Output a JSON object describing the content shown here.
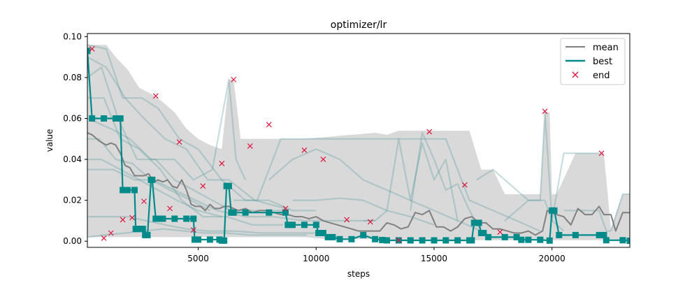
{
  "chart_data": {
    "type": "line",
    "title": "optimizer/lr",
    "xlabel": "steps",
    "ylabel": "value",
    "xlim": [
      300,
      23300
    ],
    "ylim": [
      -0.003,
      0.1015
    ],
    "x_ticks": [
      5000,
      10000,
      15000,
      20000
    ],
    "x_tick_labels": [
      "5000",
      "10000",
      "15000",
      "20000"
    ],
    "y_ticks": [
      0.0,
      0.02,
      0.04,
      0.06,
      0.08,
      0.1
    ],
    "y_tick_labels": [
      "0.00",
      "0.02",
      "0.04",
      "0.06",
      "0.08",
      "0.10"
    ],
    "grid": false,
    "legend": {
      "position": "top-right",
      "entries": [
        {
          "label": "mean",
          "kind": "line",
          "color": "#808080"
        },
        {
          "label": "best",
          "kind": "line",
          "color": "#008b8b"
        },
        {
          "label": "end",
          "kind": "x-marker",
          "color": "#dc143c"
        }
      ]
    },
    "colors": {
      "mean": "#808080",
      "best": "#008b8b",
      "end": "#dc143c",
      "band": "#d9d9d9",
      "trials": "#5f9ea0"
    },
    "band": {
      "name": "range",
      "x": [
        300,
        800,
        1100,
        1500,
        2000,
        2500,
        3000,
        3500,
        4000,
        4500,
        5000,
        5500,
        6000,
        6300,
        6500,
        6800,
        7200,
        8000,
        8700,
        9500,
        10500,
        11500,
        12500,
        13000,
        13500,
        14000,
        14500,
        15000,
        15500,
        16000,
        16500,
        17000,
        17500,
        18000,
        18500,
        19000,
        19500,
        19700,
        19900,
        20000,
        20200,
        21000,
        22000,
        22200,
        22500,
        23000,
        23300
      ],
      "upper": [
        0.096,
        0.096,
        0.096,
        0.09,
        0.084,
        0.075,
        0.072,
        0.068,
        0.063,
        0.055,
        0.05,
        0.047,
        0.045,
        0.079,
        0.079,
        0.05,
        0.05,
        0.05,
        0.05,
        0.05,
        0.051,
        0.052,
        0.053,
        0.052,
        0.054,
        0.054,
        0.054,
        0.054,
        0.054,
        0.054,
        0.054,
        0.035,
        0.035,
        0.023,
        0.023,
        0.023,
        0.023,
        0.063,
        0.063,
        0.023,
        0.023,
        0.043,
        0.043,
        0.043,
        0.006,
        0.023,
        0.023
      ],
      "lower": [
        0.002,
        0.002,
        0.002,
        0.002,
        0.002,
        0.002,
        0.002,
        0.002,
        0.002,
        0.002,
        0.002,
        0.002,
        0.002,
        0.002,
        0.002,
        0.002,
        0.002,
        0.002,
        0.002,
        0.002,
        0.001,
        0.001,
        0.001,
        0.001,
        0.0005,
        0.0005,
        0.0005,
        0.0005,
        0.0005,
        0.0005,
        0.0005,
        0.0005,
        0.0005,
        0.0005,
        0.0005,
        0.0005,
        0.0005,
        0.0005,
        0.0005,
        0.0005,
        0.0005,
        0.0005,
        0.0005,
        0.0005,
        0.0005,
        0.0005,
        0.0005
      ]
    },
    "trials": [
      {
        "x": [
          300,
          1100,
          1800,
          2600,
          3300,
          4200,
          5000,
          6000,
          7000,
          8000,
          9000,
          10000
        ],
        "y": [
          0.096,
          0.094,
          0.07,
          0.07,
          0.065,
          0.05,
          0.045,
          0.03,
          0.02,
          0.02,
          0.015,
          0.015
        ]
      },
      {
        "x": [
          300,
          900,
          1600,
          2400,
          3200,
          4000,
          4800,
          5600,
          6400,
          7400,
          8800
        ],
        "y": [
          0.08,
          0.085,
          0.06,
          0.04,
          0.04,
          0.03,
          0.025,
          0.02,
          0.015,
          0.015,
          0.015
        ]
      },
      {
        "x": [
          300,
          1000,
          1700,
          2500,
          3400,
          4300,
          5200,
          6200,
          7300,
          8600
        ],
        "y": [
          0.07,
          0.07,
          0.05,
          0.045,
          0.035,
          0.02,
          0.012,
          0.012,
          0.008,
          0.008
        ]
      },
      {
        "x": [
          300,
          1200,
          2000,
          2800,
          3600,
          4500,
          5400,
          6500,
          7700,
          9200,
          10400
        ],
        "y": [
          0.012,
          0.012,
          0.012,
          0.01,
          0.008,
          0.006,
          0.005,
          0.005,
          0.004,
          0.004,
          0.004
        ]
      },
      {
        "x": [
          300,
          800,
          1500,
          2200,
          3000,
          3800,
          4700,
          5500
        ],
        "y": [
          0.05,
          0.05,
          0.04,
          0.038,
          0.03,
          0.025,
          0.02,
          0.015
        ]
      },
      {
        "x": [
          300,
          1300,
          2100,
          3000,
          4000,
          4800,
          5600,
          6300,
          6600,
          7000
        ],
        "y": [
          0.06,
          0.055,
          0.05,
          0.04,
          0.04,
          0.03,
          0.035,
          0.079,
          0.04,
          0.03
        ]
      },
      {
        "x": [
          300,
          1000,
          1900,
          2700,
          3500,
          4400,
          5300,
          6200,
          7200,
          8400,
          9600
        ],
        "y": [
          0.002,
          0.003,
          0.004,
          0.005,
          0.006,
          0.005,
          0.004,
          0.004,
          0.003,
          0.003,
          0.003
        ]
      },
      {
        "x": [
          300,
          1400,
          2300,
          3100,
          4000,
          4900,
          5800,
          7000,
          8200,
          9500,
          11000,
          12500
        ],
        "y": [
          0.035,
          0.035,
          0.03,
          0.03,
          0.025,
          0.02,
          0.015,
          0.012,
          0.012,
          0.01,
          0.01,
          0.01
        ]
      },
      {
        "x": [
          300,
          1100,
          1900,
          2700,
          3600,
          4500,
          5400,
          6300,
          7400,
          8700
        ],
        "y": [
          0.09,
          0.085,
          0.07,
          0.06,
          0.05,
          0.045,
          0.03,
          0.03,
          0.02,
          0.016
        ]
      },
      {
        "x": [
          300,
          900,
          1700,
          2500,
          3300,
          4100,
          5000,
          6000
        ],
        "y": [
          0.04,
          0.04,
          0.035,
          0.03,
          0.025,
          0.02,
          0.015,
          0.012
        ]
      },
      {
        "x": [
          6500,
          7500,
          8500,
          9500,
          10500,
          11500,
          12500,
          13500,
          14500,
          15500,
          16500,
          17500,
          18500,
          19500
        ],
        "y": [
          0.02,
          0.02,
          0.05,
          0.05,
          0.05,
          0.05,
          0.05,
          0.05,
          0.05,
          0.05,
          0.02,
          0.015,
          0.01,
          0.005
        ]
      },
      {
        "x": [
          8000,
          9000,
          10000,
          11000,
          12000,
          13000,
          14000,
          15000,
          16000,
          17000
        ],
        "y": [
          0.03,
          0.04,
          0.045,
          0.04,
          0.03,
          0.025,
          0.02,
          0.015,
          0.01,
          0.005
        ]
      },
      {
        "x": [
          12000,
          12500,
          13000,
          13500,
          14000,
          14500,
          15000,
          15500,
          16000
        ],
        "y": [
          0.01,
          0.01,
          0.015,
          0.05,
          0.02,
          0.048,
          0.03,
          0.04,
          0.01
        ]
      },
      {
        "x": [
          14000,
          14500,
          15000,
          15500,
          16000,
          16500,
          17000
        ],
        "y": [
          0.015,
          0.053,
          0.04,
          0.025,
          0.028,
          0.015,
          0.005
        ]
      },
      {
        "x": [
          16800,
          17500,
          18200,
          19000,
          19700,
          20000,
          20500
        ],
        "y": [
          0.03,
          0.035,
          0.028,
          0.02,
          0.02,
          0.01,
          0.005
        ]
      },
      {
        "x": [
          18000,
          19000,
          19500,
          19700,
          20000,
          20500,
          21000,
          21500,
          22000
        ],
        "y": [
          0.01,
          0.02,
          0.02,
          0.063,
          0.01,
          0.043,
          0.043,
          0.043,
          0.043
        ]
      },
      {
        "x": [
          20500,
          21500,
          22000,
          22300,
          22500,
          23000,
          23300
        ],
        "y": [
          0.015,
          0.015,
          0.015,
          0.005,
          0.005,
          0.023,
          0.023
        ]
      },
      {
        "x": [
          9000,
          10000,
          11000,
          12000,
          13000,
          14000,
          15000
        ],
        "y": [
          0.02,
          0.02,
          0.021,
          0.02,
          0.015,
          0.012,
          0.008
        ]
      }
    ],
    "series": [
      {
        "name": "mean",
        "x": [
          300,
          500,
          800,
          1100,
          1300,
          1500,
          1700,
          1900,
          2100,
          2300,
          2500,
          2700,
          2900,
          3100,
          3300,
          3500,
          3700,
          3900,
          4100,
          4300,
          4500,
          4700,
          4900,
          5100,
          5300,
          5500,
          5700,
          5900,
          6100,
          6300,
          6500,
          6700,
          7000,
          7300,
          7600,
          7900,
          8200,
          8500,
          8800,
          9100,
          9400,
          9700,
          10000,
          10300,
          10600,
          10900,
          11200,
          11500,
          11800,
          12100,
          12400,
          12700,
          13000,
          13300,
          13600,
          13900,
          14200,
          14500,
          14800,
          15100,
          15400,
          15700,
          16000,
          16300,
          16600,
          16900,
          17200,
          17500,
          17800,
          18100,
          18400,
          18700,
          19000,
          19300,
          19600,
          19800,
          20000,
          20200,
          20500,
          20800,
          21100,
          21400,
          21700,
          22000,
          22200,
          22500,
          22700,
          23000,
          23300
        ],
        "y": [
          0.053,
          0.052,
          0.049,
          0.047,
          0.048,
          0.047,
          0.043,
          0.037,
          0.036,
          0.032,
          0.032,
          0.032,
          0.033,
          0.029,
          0.03,
          0.029,
          0.03,
          0.027,
          0.026,
          0.03,
          0.025,
          0.018,
          0.017,
          0.017,
          0.015,
          0.018,
          0.016,
          0.016,
          0.017,
          0.017,
          0.016,
          0.015,
          0.016,
          0.014,
          0.015,
          0.015,
          0.014,
          0.013,
          0.013,
          0.012,
          0.012,
          0.011,
          0.012,
          0.01,
          0.009,
          0.008,
          0.007,
          0.006,
          0.005,
          0.005,
          0.005,
          0.005,
          0.009,
          0.008,
          0.006,
          0.007,
          0.014,
          0.013,
          0.015,
          0.007,
          0.007,
          0.005,
          0.007,
          0.011,
          0.012,
          0.009,
          0.009,
          0.006,
          0.006,
          0.005,
          0.004,
          0.004,
          0.005,
          0.003,
          0.005,
          0.015,
          0.014,
          0.013,
          0.012,
          0.008,
          0.016,
          0.013,
          0.013,
          0.017,
          0.013,
          0.013,
          0.005,
          0.014,
          0.014
        ]
      },
      {
        "name": "best",
        "x": [
          300,
          500,
          1000,
          1500,
          1700,
          1800,
          2000,
          2300,
          2350,
          2450,
          2550,
          2650,
          2750,
          2800,
          2850,
          3000,
          3050,
          3200,
          3300,
          3500,
          4000,
          4500,
          4800,
          4850,
          5000,
          5500,
          5900,
          6000,
          6100,
          6200,
          6300,
          6400,
          6500,
          7000,
          8000,
          8700,
          8800,
          9000,
          9500,
          10000,
          10100,
          10300,
          10500,
          10700,
          11000,
          11500,
          12000,
          12500,
          12800,
          13000,
          13500,
          14000,
          14500,
          15000,
          15500,
          16000,
          16500,
          16600,
          16700,
          16900,
          17000,
          17100,
          17300,
          18000,
          18500,
          18700,
          19000,
          19500,
          19900,
          20000,
          20100,
          20300,
          21000,
          22000,
          22200,
          22300,
          23000,
          23300
        ],
        "y": [
          0.093,
          0.06,
          0.06,
          0.06,
          0.06,
          0.025,
          0.025,
          0.025,
          0.006,
          0.006,
          0.006,
          0.006,
          0.003,
          0.003,
          0.003,
          0.03,
          0.03,
          0.011,
          0.011,
          0.011,
          0.011,
          0.011,
          0.011,
          0.0008,
          0.0008,
          0.0008,
          0.0008,
          0.0003,
          0.0003,
          0.027,
          0.027,
          0.014,
          0.014,
          0.014,
          0.014,
          0.014,
          0.008,
          0.008,
          0.008,
          0.008,
          0.004,
          0.004,
          0.002,
          0.002,
          0.001,
          0.001,
          0.003,
          0.001,
          0.0006,
          0.0004,
          0.0004,
          0.0004,
          0.0004,
          0.0004,
          0.0004,
          0.0004,
          0.0004,
          0.0004,
          0.009,
          0.009,
          0.004,
          0.004,
          0.002,
          0.002,
          0.002,
          0.0007,
          0.0007,
          0.0007,
          0.0003,
          0.015,
          0.015,
          0.003,
          0.003,
          0.003,
          0.003,
          0.0005,
          0.0005,
          0.0002
        ]
      }
    ],
    "end_points": {
      "name": "end",
      "x": [
        500,
        1000,
        1300,
        1800,
        2200,
        2700,
        3200,
        3800,
        4200,
        4800,
        5200,
        6000,
        6500,
        7200,
        8000,
        8700,
        9500,
        10300,
        11300,
        12300,
        13500,
        14800,
        16300,
        17800,
        19700,
        22100
      ],
      "y": [
        0.094,
        0.0015,
        0.004,
        0.0105,
        0.0115,
        0.0195,
        0.071,
        0.016,
        0.0485,
        0.0055,
        0.027,
        0.038,
        0.079,
        0.0465,
        0.057,
        0.016,
        0.0445,
        0.04,
        0.0105,
        0.0095,
        0.0005,
        0.0535,
        0.0275,
        0.0045,
        0.0635,
        0.043
      ]
    }
  }
}
